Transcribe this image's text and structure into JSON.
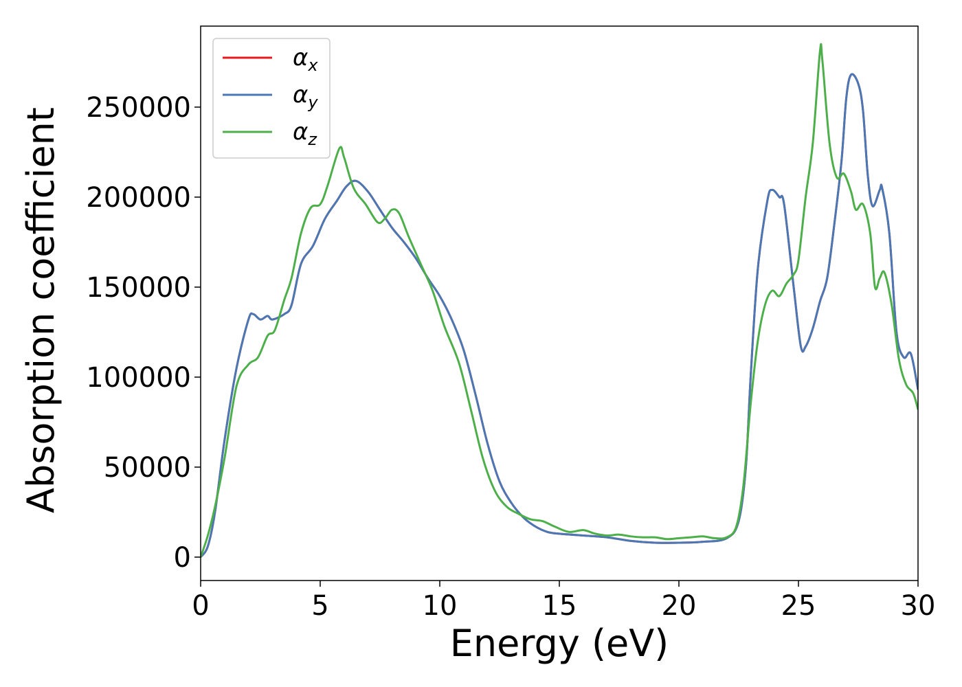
{
  "chart_data": {
    "type": "line",
    "title": "",
    "xlabel": "Energy (eV)",
    "ylabel": "Absorption coefficient",
    "xlim": [
      0,
      30
    ],
    "ylim": [
      -13000,
      295000
    ],
    "xticks": [
      0,
      5,
      10,
      15,
      20,
      25,
      30
    ],
    "yticks": [
      0,
      50000,
      100000,
      150000,
      200000,
      250000
    ],
    "grid": false,
    "legend_position": "top-left",
    "series": [
      {
        "name": "αx",
        "symbol": "α",
        "subscript": "x",
        "color": "#e41a1c",
        "points": [
          [
            0,
            0
          ],
          [
            0.3,
            6000
          ],
          [
            0.6,
            25000
          ],
          [
            1.0,
            65000
          ],
          [
            1.5,
            105000
          ],
          [
            2.0,
            132000
          ],
          [
            2.2,
            135000
          ],
          [
            2.5,
            132000
          ],
          [
            2.8,
            134000
          ],
          [
            3.0,
            132000
          ],
          [
            3.5,
            135000
          ],
          [
            3.8,
            140000
          ],
          [
            4.2,
            163000
          ],
          [
            4.7,
            173000
          ],
          [
            5.2,
            188000
          ],
          [
            5.7,
            198000
          ],
          [
            6.1,
            206000
          ],
          [
            6.5,
            209000
          ],
          [
            7.0,
            203000
          ],
          [
            7.5,
            193000
          ],
          [
            8.0,
            183000
          ],
          [
            8.5,
            175000
          ],
          [
            9.0,
            166000
          ],
          [
            9.5,
            155000
          ],
          [
            10.0,
            145000
          ],
          [
            10.5,
            132000
          ],
          [
            11.0,
            115000
          ],
          [
            11.5,
            90000
          ],
          [
            12.0,
            63000
          ],
          [
            12.5,
            42000
          ],
          [
            13.0,
            30000
          ],
          [
            13.5,
            22000
          ],
          [
            14.0,
            17000
          ],
          [
            14.5,
            14000
          ],
          [
            15.0,
            13000
          ],
          [
            16.0,
            12000
          ],
          [
            17.0,
            11000
          ],
          [
            18.0,
            9000
          ],
          [
            19.0,
            8000
          ],
          [
            20.0,
            8000
          ],
          [
            21.0,
            8500
          ],
          [
            22.0,
            10500
          ],
          [
            22.5,
            20000
          ],
          [
            22.8,
            50000
          ],
          [
            23.0,
            100000
          ],
          [
            23.3,
            160000
          ],
          [
            23.7,
            198000
          ],
          [
            23.9,
            204000
          ],
          [
            24.2,
            200000
          ],
          [
            24.4,
            196000
          ],
          [
            24.8,
            150000
          ],
          [
            25.1,
            117000
          ],
          [
            25.3,
            117000
          ],
          [
            25.6,
            127000
          ],
          [
            25.9,
            142000
          ],
          [
            26.2,
            155000
          ],
          [
            26.5,
            185000
          ],
          [
            26.8,
            220000
          ],
          [
            27.0,
            255000
          ],
          [
            27.2,
            268000
          ],
          [
            27.5,
            263000
          ],
          [
            27.7,
            248000
          ],
          [
            27.9,
            212000
          ],
          [
            28.1,
            195000
          ],
          [
            28.4,
            204000
          ],
          [
            28.5,
            205000
          ],
          [
            28.8,
            180000
          ],
          [
            29.1,
            125000
          ],
          [
            29.4,
            111000
          ],
          [
            29.7,
            113000
          ],
          [
            30.0,
            93000
          ]
        ]
      },
      {
        "name": "αy",
        "symbol": "α",
        "subscript": "y",
        "color": "#4a78b4",
        "points": [
          [
            0,
            0
          ],
          [
            0.3,
            6000
          ],
          [
            0.6,
            25000
          ],
          [
            1.0,
            65000
          ],
          [
            1.5,
            105000
          ],
          [
            2.0,
            132000
          ],
          [
            2.2,
            135000
          ],
          [
            2.5,
            132000
          ],
          [
            2.8,
            134000
          ],
          [
            3.0,
            132000
          ],
          [
            3.5,
            135000
          ],
          [
            3.8,
            140000
          ],
          [
            4.2,
            163000
          ],
          [
            4.7,
            173000
          ],
          [
            5.2,
            188000
          ],
          [
            5.7,
            198000
          ],
          [
            6.1,
            206000
          ],
          [
            6.5,
            209000
          ],
          [
            7.0,
            203000
          ],
          [
            7.5,
            193000
          ],
          [
            8.0,
            183000
          ],
          [
            8.5,
            175000
          ],
          [
            9.0,
            166000
          ],
          [
            9.5,
            155000
          ],
          [
            10.0,
            145000
          ],
          [
            10.5,
            132000
          ],
          [
            11.0,
            115000
          ],
          [
            11.5,
            90000
          ],
          [
            12.0,
            63000
          ],
          [
            12.5,
            42000
          ],
          [
            13.0,
            30000
          ],
          [
            13.5,
            22000
          ],
          [
            14.0,
            17000
          ],
          [
            14.5,
            14000
          ],
          [
            15.0,
            13000
          ],
          [
            16.0,
            12000
          ],
          [
            17.0,
            11000
          ],
          [
            18.0,
            9000
          ],
          [
            19.0,
            8000
          ],
          [
            20.0,
            8000
          ],
          [
            21.0,
            8500
          ],
          [
            22.0,
            10500
          ],
          [
            22.5,
            20000
          ],
          [
            22.8,
            50000
          ],
          [
            23.0,
            100000
          ],
          [
            23.3,
            160000
          ],
          [
            23.7,
            198000
          ],
          [
            23.9,
            204000
          ],
          [
            24.2,
            200000
          ],
          [
            24.4,
            196000
          ],
          [
            24.8,
            150000
          ],
          [
            25.1,
            117000
          ],
          [
            25.3,
            117000
          ],
          [
            25.6,
            127000
          ],
          [
            25.9,
            142000
          ],
          [
            26.2,
            155000
          ],
          [
            26.5,
            185000
          ],
          [
            26.8,
            220000
          ],
          [
            27.0,
            255000
          ],
          [
            27.2,
            268000
          ],
          [
            27.5,
            263000
          ],
          [
            27.7,
            248000
          ],
          [
            27.9,
            212000
          ],
          [
            28.1,
            195000
          ],
          [
            28.4,
            204000
          ],
          [
            28.5,
            205000
          ],
          [
            28.8,
            180000
          ],
          [
            29.1,
            125000
          ],
          [
            29.4,
            111000
          ],
          [
            29.7,
            113000
          ],
          [
            30.0,
            93000
          ]
        ]
      },
      {
        "name": "αz",
        "symbol": "α",
        "subscript": "z",
        "color": "#4daf4a",
        "points": [
          [
            0,
            0
          ],
          [
            0.3,
            12000
          ],
          [
            0.6,
            28000
          ],
          [
            1.0,
            55000
          ],
          [
            1.5,
            95000
          ],
          [
            2.0,
            107000
          ],
          [
            2.4,
            111000
          ],
          [
            2.8,
            123000
          ],
          [
            3.1,
            126000
          ],
          [
            3.5,
            143000
          ],
          [
            3.8,
            155000
          ],
          [
            4.2,
            180000
          ],
          [
            4.6,
            194000
          ],
          [
            5.0,
            196000
          ],
          [
            5.3,
            206000
          ],
          [
            5.8,
            227000
          ],
          [
            6.0,
            222000
          ],
          [
            6.4,
            205000
          ],
          [
            6.9,
            196000
          ],
          [
            7.4,
            186000
          ],
          [
            7.7,
            188000
          ],
          [
            8.0,
            193000
          ],
          [
            8.3,
            191000
          ],
          [
            8.7,
            178000
          ],
          [
            9.2,
            163000
          ],
          [
            9.7,
            148000
          ],
          [
            10.2,
            128000
          ],
          [
            10.8,
            108000
          ],
          [
            11.3,
            82000
          ],
          [
            11.8,
            55000
          ],
          [
            12.3,
            37000
          ],
          [
            12.8,
            28000
          ],
          [
            13.3,
            24000
          ],
          [
            13.8,
            21000
          ],
          [
            14.3,
            20000
          ],
          [
            14.8,
            17000
          ],
          [
            15.4,
            14000
          ],
          [
            16.0,
            15000
          ],
          [
            16.5,
            13000
          ],
          [
            17.0,
            12000
          ],
          [
            17.5,
            12500
          ],
          [
            18.0,
            11500
          ],
          [
            18.5,
            11000
          ],
          [
            19.0,
            11000
          ],
          [
            19.5,
            10000
          ],
          [
            20.0,
            10500
          ],
          [
            20.5,
            11000
          ],
          [
            21.0,
            11500
          ],
          [
            21.5,
            10500
          ],
          [
            22.0,
            11000
          ],
          [
            22.4,
            17000
          ],
          [
            22.7,
            40000
          ],
          [
            23.0,
            85000
          ],
          [
            23.3,
            120000
          ],
          [
            23.6,
            140000
          ],
          [
            23.9,
            148000
          ],
          [
            24.2,
            145000
          ],
          [
            24.5,
            152000
          ],
          [
            24.8,
            157000
          ],
          [
            25.0,
            165000
          ],
          [
            25.3,
            200000
          ],
          [
            25.6,
            230000
          ],
          [
            25.9,
            281000
          ],
          [
            26.0,
            276000
          ],
          [
            26.3,
            230000
          ],
          [
            26.6,
            211000
          ],
          [
            26.9,
            213000
          ],
          [
            27.2,
            203000
          ],
          [
            27.4,
            193000
          ],
          [
            27.7,
            196000
          ],
          [
            28.0,
            180000
          ],
          [
            28.2,
            150000
          ],
          [
            28.4,
            155000
          ],
          [
            28.6,
            158000
          ],
          [
            28.9,
            140000
          ],
          [
            29.2,
            110000
          ],
          [
            29.5,
            96000
          ],
          [
            29.8,
            91000
          ],
          [
            30.0,
            82000
          ]
        ]
      }
    ]
  }
}
